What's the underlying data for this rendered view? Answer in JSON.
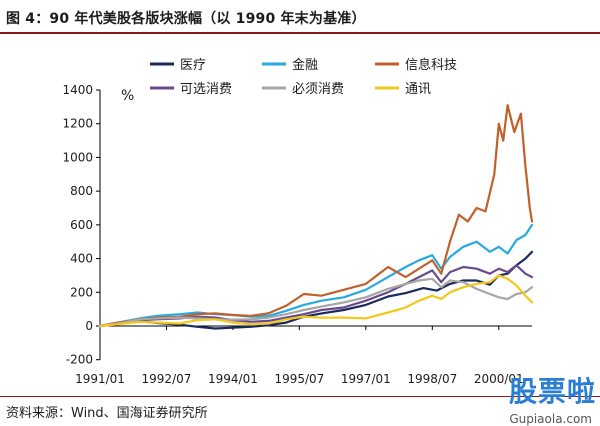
{
  "figure": {
    "title": "图 4：90 年代美股各版块涨幅（以 1990 年末为基准）",
    "source": "资料来源：Wind、国海证券研究所"
  },
  "watermark": {
    "main": "股票啦",
    "url": "Gupiaola.com"
  },
  "chart_data": {
    "type": "line",
    "ylabel": "%",
    "ylim": [
      -200,
      1400
    ],
    "yticks": [
      -200,
      0,
      200,
      400,
      600,
      800,
      1000,
      1200,
      1400
    ],
    "xlim": [
      1991.0,
      2000.75
    ],
    "xticks": [
      "1991/01",
      "1992/07",
      "1994/01",
      "1995/07",
      "1997/01",
      "1998/07",
      "2000/01"
    ],
    "xtick_values": [
      1991.0,
      1992.5,
      1994.0,
      1995.5,
      1997.0,
      1998.5,
      2000.0
    ],
    "grid": false,
    "legend": "top",
    "series": [
      {
        "name": "医疗",
        "color": "#1b2a5e",
        "points": [
          [
            1991.0,
            0
          ],
          [
            1991.4,
            12
          ],
          [
            1991.9,
            28
          ],
          [
            1992.3,
            18
          ],
          [
            1992.8,
            8
          ],
          [
            1993.2,
            -5
          ],
          [
            1993.6,
            -15
          ],
          [
            1994.0,
            -10
          ],
          [
            1994.4,
            -5
          ],
          [
            1994.8,
            5
          ],
          [
            1995.2,
            20
          ],
          [
            1995.6,
            55
          ],
          [
            1996.0,
            75
          ],
          [
            1996.5,
            95
          ],
          [
            1997.0,
            125
          ],
          [
            1997.5,
            175
          ],
          [
            1997.9,
            195
          ],
          [
            1998.3,
            225
          ],
          [
            1998.6,
            210
          ],
          [
            1998.9,
            250
          ],
          [
            1999.2,
            270
          ],
          [
            1999.5,
            270
          ],
          [
            1999.8,
            245
          ],
          [
            2000.0,
            300
          ],
          [
            2000.2,
            310
          ],
          [
            2000.4,
            360
          ],
          [
            2000.6,
            400
          ],
          [
            2000.75,
            440
          ]
        ]
      },
      {
        "name": "金融",
        "color": "#27a9e1",
        "points": [
          [
            1991.0,
            0
          ],
          [
            1991.4,
            20
          ],
          [
            1991.9,
            45
          ],
          [
            1992.3,
            60
          ],
          [
            1992.8,
            70
          ],
          [
            1993.2,
            80
          ],
          [
            1993.6,
            70
          ],
          [
            1994.0,
            65
          ],
          [
            1994.4,
            55
          ],
          [
            1994.8,
            60
          ],
          [
            1995.2,
            90
          ],
          [
            1995.6,
            125
          ],
          [
            1996.0,
            150
          ],
          [
            1996.5,
            170
          ],
          [
            1997.0,
            215
          ],
          [
            1997.5,
            290
          ],
          [
            1997.9,
            350
          ],
          [
            1998.2,
            390
          ],
          [
            1998.5,
            420
          ],
          [
            1998.7,
            340
          ],
          [
            1998.9,
            410
          ],
          [
            1999.2,
            470
          ],
          [
            1999.5,
            500
          ],
          [
            1999.8,
            440
          ],
          [
            2000.0,
            470
          ],
          [
            2000.2,
            430
          ],
          [
            2000.4,
            510
          ],
          [
            2000.6,
            540
          ],
          [
            2000.75,
            600
          ]
        ]
      },
      {
        "name": "信息科技",
        "color": "#c1602b",
        "points": [
          [
            1991.0,
            0
          ],
          [
            1991.4,
            20
          ],
          [
            1991.9,
            40
          ],
          [
            1992.3,
            50
          ],
          [
            1992.8,
            55
          ],
          [
            1993.2,
            70
          ],
          [
            1993.6,
            75
          ],
          [
            1994.0,
            65
          ],
          [
            1994.4,
            60
          ],
          [
            1994.8,
            75
          ],
          [
            1995.2,
            120
          ],
          [
            1995.6,
            190
          ],
          [
            1996.0,
            180
          ],
          [
            1996.5,
            215
          ],
          [
            1997.0,
            250
          ],
          [
            1997.5,
            350
          ],
          [
            1997.9,
            290
          ],
          [
            1998.2,
            340
          ],
          [
            1998.5,
            390
          ],
          [
            1998.7,
            310
          ],
          [
            1998.9,
            500
          ],
          [
            1999.1,
            660
          ],
          [
            1999.3,
            620
          ],
          [
            1999.5,
            700
          ],
          [
            1999.7,
            680
          ],
          [
            1999.9,
            900
          ],
          [
            2000.0,
            1200
          ],
          [
            2000.1,
            1100
          ],
          [
            2000.2,
            1310
          ],
          [
            2000.35,
            1150
          ],
          [
            2000.5,
            1260
          ],
          [
            2000.6,
            950
          ],
          [
            2000.7,
            700
          ],
          [
            2000.75,
            620
          ]
        ]
      },
      {
        "name": "可选消费",
        "color": "#6a4a8c",
        "points": [
          [
            1991.0,
            0
          ],
          [
            1991.4,
            15
          ],
          [
            1991.9,
            35
          ],
          [
            1992.3,
            40
          ],
          [
            1992.8,
            45
          ],
          [
            1993.2,
            55
          ],
          [
            1993.6,
            50
          ],
          [
            1994.0,
            35
          ],
          [
            1994.4,
            25
          ],
          [
            1994.8,
            30
          ],
          [
            1995.2,
            50
          ],
          [
            1995.6,
            70
          ],
          [
            1996.0,
            95
          ],
          [
            1996.5,
            110
          ],
          [
            1997.0,
            150
          ],
          [
            1997.5,
            200
          ],
          [
            1997.9,
            250
          ],
          [
            1998.2,
            290
          ],
          [
            1998.5,
            330
          ],
          [
            1998.7,
            260
          ],
          [
            1998.9,
            320
          ],
          [
            1999.2,
            350
          ],
          [
            1999.5,
            340
          ],
          [
            1999.8,
            310
          ],
          [
            2000.0,
            340
          ],
          [
            2000.2,
            320
          ],
          [
            2000.4,
            360
          ],
          [
            2000.6,
            310
          ],
          [
            2000.75,
            290
          ]
        ]
      },
      {
        "name": "必须消费",
        "color": "#a6a6a6",
        "points": [
          [
            1991.0,
            0
          ],
          [
            1991.4,
            15
          ],
          [
            1991.9,
            40
          ],
          [
            1992.3,
            45
          ],
          [
            1992.8,
            50
          ],
          [
            1993.2,
            45
          ],
          [
            1993.6,
            40
          ],
          [
            1994.0,
            38
          ],
          [
            1994.4,
            40
          ],
          [
            1994.8,
            50
          ],
          [
            1995.2,
            70
          ],
          [
            1995.6,
            95
          ],
          [
            1996.0,
            115
          ],
          [
            1996.5,
            140
          ],
          [
            1997.0,
            170
          ],
          [
            1997.5,
            220
          ],
          [
            1997.9,
            250
          ],
          [
            1998.2,
            270
          ],
          [
            1998.5,
            280
          ],
          [
            1998.7,
            230
          ],
          [
            1998.9,
            270
          ],
          [
            1999.2,
            260
          ],
          [
            1999.5,
            220
          ],
          [
            1999.8,
            190
          ],
          [
            2000.0,
            170
          ],
          [
            2000.2,
            160
          ],
          [
            2000.4,
            190
          ],
          [
            2000.6,
            200
          ],
          [
            2000.75,
            230
          ]
        ]
      },
      {
        "name": "通讯",
        "color": "#f3c81b",
        "points": [
          [
            1991.0,
            0
          ],
          [
            1991.4,
            10
          ],
          [
            1991.9,
            25
          ],
          [
            1992.3,
            20
          ],
          [
            1992.8,
            15
          ],
          [
            1993.2,
            35
          ],
          [
            1993.6,
            40
          ],
          [
            1994.0,
            20
          ],
          [
            1994.4,
            10
          ],
          [
            1994.8,
            15
          ],
          [
            1995.2,
            40
          ],
          [
            1995.6,
            55
          ],
          [
            1996.0,
            50
          ],
          [
            1996.5,
            50
          ],
          [
            1997.0,
            45
          ],
          [
            1997.5,
            80
          ],
          [
            1997.9,
            110
          ],
          [
            1998.2,
            150
          ],
          [
            1998.5,
            180
          ],
          [
            1998.7,
            160
          ],
          [
            1998.9,
            200
          ],
          [
            1999.2,
            230
          ],
          [
            1999.5,
            250
          ],
          [
            1999.8,
            260
          ],
          [
            2000.0,
            300
          ],
          [
            2000.2,
            280
          ],
          [
            2000.4,
            240
          ],
          [
            2000.6,
            180
          ],
          [
            2000.75,
            140
          ]
        ]
      }
    ]
  }
}
